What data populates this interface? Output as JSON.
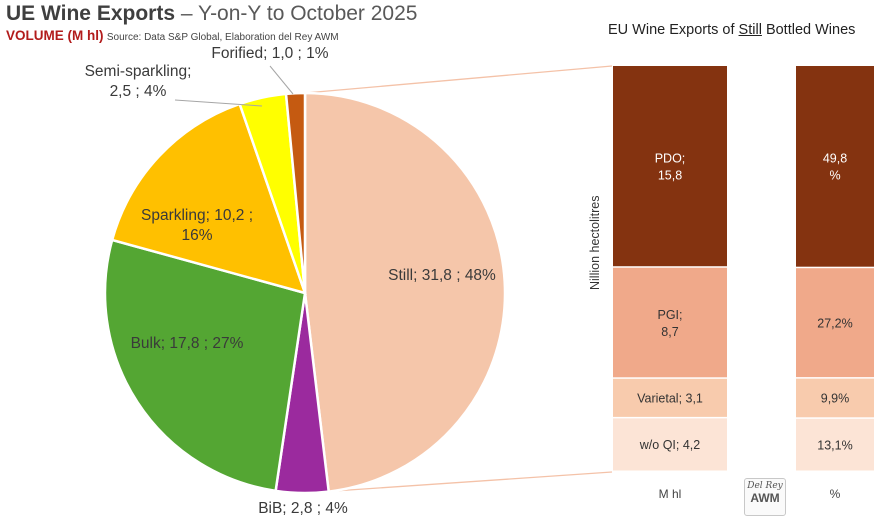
{
  "header": {
    "title_bold": "UE Wine Exports",
    "title_rest": " – Y-on-Y to October 2025",
    "volume_label": "VOLUME (M hl)",
    "source": "Source: Data S&P Global, Elaboration del Rey AWM"
  },
  "right_title": {
    "prefix": "EU Wine Exports of ",
    "underlined": "Still",
    "suffix": " Bottled Wines"
  },
  "logo": {
    "line1": "Del Rey",
    "line2": "AWM"
  },
  "colors": {
    "still": "#f5c6aa",
    "bib": "#9b2a9e",
    "bulk": "#54a633",
    "sparkling": "#ffc000",
    "semi_sparkling": "#ffff00",
    "forified": "#c55a11",
    "pdo": "#843310",
    "pgi": "#f0a98a",
    "varietal": "#f8cbad",
    "woqi": "#fce4d6"
  },
  "chart_data": [
    {
      "type": "pie",
      "title": "UE Wine Exports – Y-on-Y to October 2025",
      "unit": "M hl",
      "slices": [
        {
          "key": "still",
          "name": "Still",
          "value": 31.8,
          "percent": 48,
          "label": "Still; 31,8 ; 48%"
        },
        {
          "key": "bib",
          "name": "BiB",
          "value": 2.8,
          "percent": 4,
          "label": "BiB; 2,8 ; 4%"
        },
        {
          "key": "bulk",
          "name": "Bulk",
          "value": 17.8,
          "percent": 27,
          "label": "Bulk; 17,8 ; 27%"
        },
        {
          "key": "sparkling",
          "name": "Sparkling",
          "value": 10.2,
          "percent": 16,
          "label_lines": [
            "Sparkling; 10,2 ;",
            "16%"
          ]
        },
        {
          "key": "semi_sparkling",
          "name": "Semi-sparkling",
          "value": 2.5,
          "percent": 4,
          "label_lines": [
            "Semi-sparkling;",
            "2,5 ; 4%"
          ]
        },
        {
          "key": "forified",
          "name": "Forified",
          "value": 1.0,
          "percent": 1,
          "label": "Forified; 1,0 ; 1%"
        }
      ]
    },
    {
      "type": "bar",
      "stacked": true,
      "title": "EU Wine Exports of Still Bottled Wines",
      "ylabel": "Nillion hectolitres",
      "categories": [
        "M hl",
        "%"
      ],
      "series": [
        {
          "key": "woqi",
          "name": "w/o QI",
          "values": [
            4.2,
            13.1
          ],
          "labels": [
            [
              "w/o QI; 4,2"
            ],
            [
              "13,1%"
            ]
          ]
        },
        {
          "key": "varietal",
          "name": "Varietal",
          "values": [
            3.1,
            9.9
          ],
          "labels": [
            [
              "Varietal; 3,1"
            ],
            [
              "9,9%"
            ]
          ]
        },
        {
          "key": "pgi",
          "name": "PGI",
          "values": [
            8.7,
            27.2
          ],
          "labels": [
            [
              "PGI;",
              "8,7"
            ],
            [
              "27,2%"
            ]
          ]
        },
        {
          "key": "pdo",
          "name": "PDO",
          "values": [
            15.8,
            49.8
          ],
          "labels": [
            [
              "PDO;",
              "15,8"
            ],
            [
              "49,8",
              "%"
            ]
          ]
        }
      ]
    }
  ]
}
